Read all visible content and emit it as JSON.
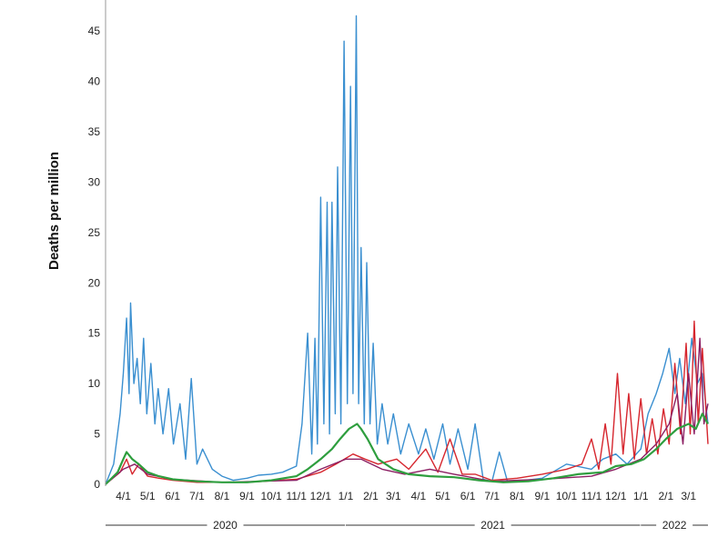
{
  "chart_data": {
    "type": "line",
    "title": "",
    "ylabel": "Deaths per million",
    "xlabel": "",
    "ylim": [
      0,
      47
    ],
    "yticks": [
      0,
      5,
      10,
      15,
      20,
      25,
      30,
      35,
      40,
      45
    ],
    "xlim": [
      "2020-03-10",
      "2022-03-25"
    ],
    "grid": false,
    "legend": "none",
    "x_tick_labels": [
      {
        "date": "2020-04-01",
        "label": "4/1"
      },
      {
        "date": "2020-05-01",
        "label": "5/1"
      },
      {
        "date": "2020-06-01",
        "label": "6/1"
      },
      {
        "date": "2020-07-01",
        "label": "7/1"
      },
      {
        "date": "2020-08-01",
        "label": "8/1"
      },
      {
        "date": "2020-09-01",
        "label": "9/1"
      },
      {
        "date": "2020-10-01",
        "label": "10/1"
      },
      {
        "date": "2020-11-01",
        "label": "11/1"
      },
      {
        "date": "2020-12-01",
        "label": "12/1"
      },
      {
        "date": "2021-01-01",
        "label": "1/1"
      },
      {
        "date": "2021-02-01",
        "label": "2/1"
      },
      {
        "date": "2021-03-01",
        "label": "3/1"
      },
      {
        "date": "2021-04-01",
        "label": "4/1"
      },
      {
        "date": "2021-05-01",
        "label": "5/1"
      },
      {
        "date": "2021-06-01",
        "label": "6/1"
      },
      {
        "date": "2021-07-01",
        "label": "7/1"
      },
      {
        "date": "2021-08-01",
        "label": "8/1"
      },
      {
        "date": "2021-09-01",
        "label": "9/1"
      },
      {
        "date": "2021-10-01",
        "label": "10/1"
      },
      {
        "date": "2021-11-01",
        "label": "11/1"
      },
      {
        "date": "2021-12-01",
        "label": "12/1"
      },
      {
        "date": "2022-01-01",
        "label": "1/1"
      },
      {
        "date": "2022-02-01",
        "label": "2/1"
      },
      {
        "date": "2022-03-01",
        "label": "3/1"
      }
    ],
    "years": [
      {
        "label": "2020",
        "start": "2020-03-10",
        "end": "2020-12-31"
      },
      {
        "label": "2021",
        "start": "2021-01-01",
        "end": "2021-12-31"
      },
      {
        "label": "2022",
        "start": "2022-01-01",
        "end": "2022-03-25"
      }
    ],
    "series": [
      {
        "color": "#3a8fd0",
        "points": [
          [
            "2020-03-10",
            0
          ],
          [
            "2020-03-20",
            2
          ],
          [
            "2020-03-28",
            7
          ],
          [
            "2020-04-01",
            11
          ],
          [
            "2020-04-05",
            16.5
          ],
          [
            "2020-04-08",
            9
          ],
          [
            "2020-04-10",
            18
          ],
          [
            "2020-04-14",
            10
          ],
          [
            "2020-04-18",
            12.5
          ],
          [
            "2020-04-22",
            8
          ],
          [
            "2020-04-26",
            14.5
          ],
          [
            "2020-04-30",
            7
          ],
          [
            "2020-05-05",
            12
          ],
          [
            "2020-05-10",
            6
          ],
          [
            "2020-05-14",
            9.5
          ],
          [
            "2020-05-20",
            5
          ],
          [
            "2020-05-27",
            9.5
          ],
          [
            "2020-06-02",
            4
          ],
          [
            "2020-06-10",
            8
          ],
          [
            "2020-06-17",
            2.5
          ],
          [
            "2020-06-24",
            10.5
          ],
          [
            "2020-07-01",
            2
          ],
          [
            "2020-07-08",
            3.5
          ],
          [
            "2020-07-20",
            1.5
          ],
          [
            "2020-08-01",
            0.8
          ],
          [
            "2020-08-15",
            0.4
          ],
          [
            "2020-09-01",
            0.6
          ],
          [
            "2020-09-15",
            0.9
          ],
          [
            "2020-10-01",
            1.0
          ],
          [
            "2020-10-15",
            1.2
          ],
          [
            "2020-11-01",
            1.8
          ],
          [
            "2020-11-08",
            6
          ],
          [
            "2020-11-15",
            15
          ],
          [
            "2020-11-20",
            3
          ],
          [
            "2020-11-24",
            14.5
          ],
          [
            "2020-11-27",
            4
          ],
          [
            "2020-12-01",
            28.5
          ],
          [
            "2020-12-05",
            6
          ],
          [
            "2020-12-09",
            28
          ],
          [
            "2020-12-12",
            5
          ],
          [
            "2020-12-15",
            28
          ],
          [
            "2020-12-19",
            7
          ],
          [
            "2020-12-22",
            31.5
          ],
          [
            "2020-12-26",
            6
          ],
          [
            "2020-12-30",
            44
          ],
          [
            "2021-01-03",
            8
          ],
          [
            "2021-01-07",
            39.5
          ],
          [
            "2021-01-10",
            9
          ],
          [
            "2021-01-14",
            46.5
          ],
          [
            "2021-01-17",
            8
          ],
          [
            "2021-01-20",
            23.5
          ],
          [
            "2021-01-24",
            6
          ],
          [
            "2021-01-27",
            22
          ],
          [
            "2021-01-31",
            6
          ],
          [
            "2021-02-04",
            14
          ],
          [
            "2021-02-09",
            4
          ],
          [
            "2021-02-15",
            8
          ],
          [
            "2021-02-22",
            4
          ],
          [
            "2021-03-01",
            7
          ],
          [
            "2021-03-10",
            3
          ],
          [
            "2021-03-20",
            6
          ],
          [
            "2021-04-01",
            3
          ],
          [
            "2021-04-10",
            5.5
          ],
          [
            "2021-04-20",
            2.5
          ],
          [
            "2021-05-01",
            6
          ],
          [
            "2021-05-10",
            2
          ],
          [
            "2021-05-20",
            5.5
          ],
          [
            "2021-06-01",
            1.5
          ],
          [
            "2021-06-10",
            6
          ],
          [
            "2021-06-20",
            0.5
          ],
          [
            "2021-07-01",
            0.3
          ],
          [
            "2021-07-10",
            3.2
          ],
          [
            "2021-07-20",
            0.3
          ],
          [
            "2021-08-01",
            0.3
          ],
          [
            "2021-09-01",
            0.6
          ],
          [
            "2021-10-01",
            2.0
          ],
          [
            "2021-11-01",
            1.5
          ],
          [
            "2021-11-15",
            2.5
          ],
          [
            "2021-12-01",
            3.0
          ],
          [
            "2021-12-15",
            2.0
          ],
          [
            "2022-01-01",
            3.5
          ],
          [
            "2022-01-10",
            7
          ],
          [
            "2022-01-20",
            9
          ],
          [
            "2022-01-28",
            11
          ],
          [
            "2022-02-05",
            13.5
          ],
          [
            "2022-02-12",
            9
          ],
          [
            "2022-02-18",
            12.5
          ],
          [
            "2022-02-25",
            8
          ],
          [
            "2022-03-05",
            14.5
          ],
          [
            "2022-03-12",
            10
          ],
          [
            "2022-03-18",
            11
          ],
          [
            "2022-03-25",
            6
          ]
        ]
      },
      {
        "color": "#d6262e",
        "points": [
          [
            "2020-03-10",
            0
          ],
          [
            "2020-03-28",
            1.2
          ],
          [
            "2020-04-05",
            2.5
          ],
          [
            "2020-04-12",
            1.0
          ],
          [
            "2020-04-20",
            2.0
          ],
          [
            "2020-05-01",
            0.8
          ],
          [
            "2020-05-15",
            0.6
          ],
          [
            "2020-06-01",
            0.4
          ],
          [
            "2020-07-01",
            0.2
          ],
          [
            "2020-09-01",
            0.2
          ],
          [
            "2020-11-01",
            0.5
          ],
          [
            "2020-12-01",
            1.2
          ],
          [
            "2020-12-20",
            2.0
          ],
          [
            "2021-01-10",
            3.0
          ],
          [
            "2021-01-25",
            2.5
          ],
          [
            "2021-02-10",
            2.0
          ],
          [
            "2021-03-05",
            2.5
          ],
          [
            "2021-03-20",
            1.5
          ],
          [
            "2021-04-10",
            3.5
          ],
          [
            "2021-04-25",
            1.2
          ],
          [
            "2021-05-10",
            4.5
          ],
          [
            "2021-05-25",
            1.0
          ],
          [
            "2021-06-10",
            1.0
          ],
          [
            "2021-07-01",
            0.4
          ],
          [
            "2021-08-01",
            0.6
          ],
          [
            "2021-09-01",
            1.0
          ],
          [
            "2021-10-01",
            1.5
          ],
          [
            "2021-10-20",
            2.0
          ],
          [
            "2021-11-01",
            4.5
          ],
          [
            "2021-11-10",
            1.5
          ],
          [
            "2021-11-18",
            6.0
          ],
          [
            "2021-11-25",
            2.0
          ],
          [
            "2021-12-03",
            11.0
          ],
          [
            "2021-12-10",
            3.0
          ],
          [
            "2021-12-17",
            9.0
          ],
          [
            "2021-12-24",
            2.5
          ],
          [
            "2022-01-01",
            8.5
          ],
          [
            "2022-01-08",
            3.0
          ],
          [
            "2022-01-15",
            6.5
          ],
          [
            "2022-01-22",
            3.0
          ],
          [
            "2022-01-29",
            7.5
          ],
          [
            "2022-02-05",
            4.0
          ],
          [
            "2022-02-12",
            12.0
          ],
          [
            "2022-02-19",
            5.0
          ],
          [
            "2022-02-26",
            14.0
          ],
          [
            "2022-03-03",
            5.0
          ],
          [
            "2022-03-08",
            16.2
          ],
          [
            "2022-03-13",
            6.0
          ],
          [
            "2022-03-18",
            13.5
          ],
          [
            "2022-03-25",
            4.0
          ]
        ]
      },
      {
        "color": "#8c1f63",
        "points": [
          [
            "2020-03-10",
            0
          ],
          [
            "2020-04-01",
            1.5
          ],
          [
            "2020-04-15",
            2.0
          ],
          [
            "2020-05-01",
            1.0
          ],
          [
            "2020-06-01",
            0.5
          ],
          [
            "2020-08-01",
            0.2
          ],
          [
            "2020-11-01",
            0.4
          ],
          [
            "2020-12-01",
            1.5
          ],
          [
            "2021-01-01",
            2.5
          ],
          [
            "2021-01-20",
            2.5
          ],
          [
            "2021-02-15",
            1.5
          ],
          [
            "2021-03-15",
            1.0
          ],
          [
            "2021-04-15",
            1.5
          ],
          [
            "2021-05-15",
            1.0
          ],
          [
            "2021-07-01",
            0.3
          ],
          [
            "2021-09-01",
            0.5
          ],
          [
            "2021-11-01",
            0.8
          ],
          [
            "2021-12-01",
            1.5
          ],
          [
            "2022-01-01",
            2.5
          ],
          [
            "2022-01-20",
            4.0
          ],
          [
            "2022-02-05",
            6.0
          ],
          [
            "2022-02-15",
            9.0
          ],
          [
            "2022-02-22",
            4.0
          ],
          [
            "2022-03-01",
            11.0
          ],
          [
            "2022-03-08",
            5.0
          ],
          [
            "2022-03-15",
            14.5
          ],
          [
            "2022-03-20",
            6.0
          ],
          [
            "2022-03-25",
            8.0
          ]
        ]
      },
      {
        "color": "#2e9e3e",
        "points": [
          [
            "2020-03-10",
            0
          ],
          [
            "2020-03-25",
            1.2
          ],
          [
            "2020-04-01",
            2.5
          ],
          [
            "2020-04-05",
            3.2
          ],
          [
            "2020-04-12",
            2.5
          ],
          [
            "2020-04-20",
            2.0
          ],
          [
            "2020-05-01",
            1.2
          ],
          [
            "2020-05-15",
            0.8
          ],
          [
            "2020-06-01",
            0.5
          ],
          [
            "2020-07-01",
            0.3
          ],
          [
            "2020-08-01",
            0.2
          ],
          [
            "2020-09-01",
            0.2
          ],
          [
            "2020-10-01",
            0.4
          ],
          [
            "2020-11-01",
            0.8
          ],
          [
            "2020-11-15",
            1.5
          ],
          [
            "2020-12-01",
            2.5
          ],
          [
            "2020-12-15",
            3.5
          ],
          [
            "2020-12-25",
            4.5
          ],
          [
            "2021-01-05",
            5.5
          ],
          [
            "2021-01-15",
            6.0
          ],
          [
            "2021-01-20",
            5.5
          ],
          [
            "2021-01-28",
            4.5
          ],
          [
            "2021-02-10",
            2.5
          ],
          [
            "2021-03-01",
            1.5
          ],
          [
            "2021-03-20",
            1.0
          ],
          [
            "2021-04-15",
            0.8
          ],
          [
            "2021-05-15",
            0.7
          ],
          [
            "2021-06-15",
            0.4
          ],
          [
            "2021-07-15",
            0.2
          ],
          [
            "2021-08-15",
            0.3
          ],
          [
            "2021-09-15",
            0.6
          ],
          [
            "2021-10-15",
            1.0
          ],
          [
            "2021-11-15",
            1.2
          ],
          [
            "2021-12-01",
            1.8
          ],
          [
            "2021-12-20",
            2.0
          ],
          [
            "2022-01-05",
            2.5
          ],
          [
            "2022-01-20",
            3.5
          ],
          [
            "2022-02-01",
            4.5
          ],
          [
            "2022-02-15",
            5.5
          ],
          [
            "2022-03-01",
            6.0
          ],
          [
            "2022-03-10",
            5.5
          ],
          [
            "2022-03-18",
            7.0
          ],
          [
            "2022-03-25",
            6.0
          ]
        ]
      }
    ]
  }
}
